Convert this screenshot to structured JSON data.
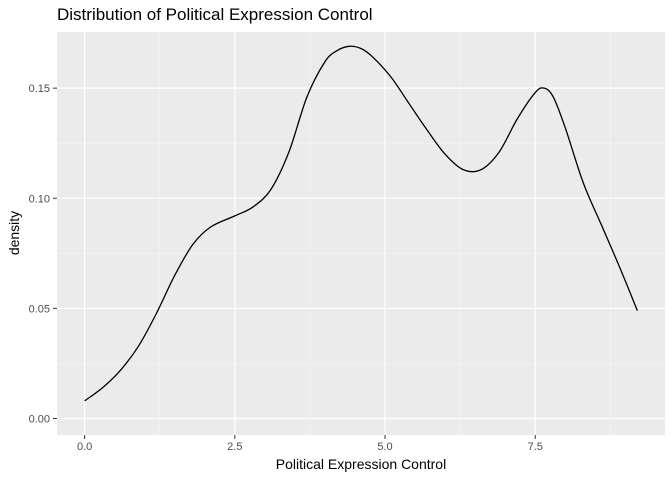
{
  "chart_data": {
    "type": "line",
    "title": "Distribution of Political Expression Control",
    "xlabel": "Political Expression Control",
    "ylabel": "density",
    "xlim": [
      -0.46,
      9.66
    ],
    "ylim": [
      -0.0075,
      0.1755
    ],
    "x_ticks": [
      0.0,
      2.5,
      5.0,
      7.5
    ],
    "x_tick_labels": [
      "0.0",
      "2.5",
      "5.0",
      "7.5"
    ],
    "y_ticks": [
      0.0,
      0.05,
      0.1,
      0.15
    ],
    "y_tick_labels": [
      "0.00",
      "0.05",
      "0.10",
      "0.15"
    ],
    "grid": true,
    "series": [
      {
        "x": [
          0.0,
          0.3,
          0.6,
          0.9,
          1.2,
          1.5,
          1.8,
          2.1,
          2.5,
          2.8,
          3.1,
          3.4,
          3.7,
          4.0,
          4.2,
          4.4,
          4.6,
          4.8,
          5.1,
          5.4,
          5.7,
          6.0,
          6.3,
          6.6,
          6.9,
          7.2,
          7.5,
          7.65,
          7.8,
          8.0,
          8.3,
          8.6,
          8.9,
          9.2
        ],
        "y": [
          0.008,
          0.014,
          0.022,
          0.033,
          0.048,
          0.065,
          0.079,
          0.087,
          0.092,
          0.096,
          0.104,
          0.121,
          0.146,
          0.162,
          0.167,
          0.169,
          0.168,
          0.164,
          0.155,
          0.143,
          0.131,
          0.12,
          0.113,
          0.113,
          0.121,
          0.136,
          0.148,
          0.15,
          0.146,
          0.132,
          0.107,
          0.088,
          0.069,
          0.049
        ],
        "color": "#000000"
      }
    ]
  }
}
